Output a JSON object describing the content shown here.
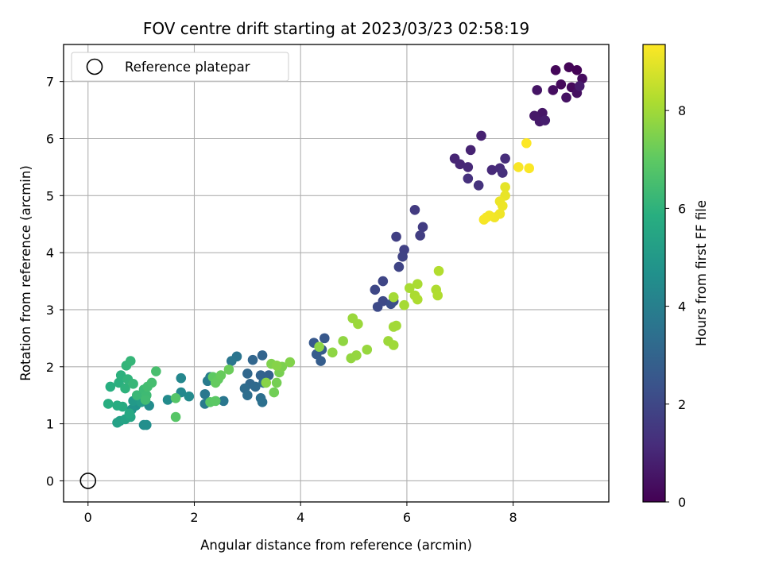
{
  "chart_data": {
    "type": "scatter",
    "title": "FOV centre drift starting at 2023/03/23 02:58:19",
    "xlabel": "Angular distance from reference (arcmin)",
    "ylabel": "Rotation from reference (arcmin)",
    "xlim": [
      -0.46,
      9.8
    ],
    "ylim": [
      -0.37,
      7.65
    ],
    "xticks": [
      0,
      2,
      4,
      6,
      8
    ],
    "yticks": [
      0,
      1,
      2,
      3,
      4,
      5,
      6,
      7
    ],
    "grid": true,
    "colormap": "viridis",
    "colorbar": {
      "label": "Hours from first FF file",
      "range": [
        0,
        9.35
      ],
      "ticks": [
        0,
        2,
        4,
        6,
        8
      ]
    },
    "legend": {
      "placement": "top-left",
      "entries": [
        "Reference platepar"
      ]
    },
    "reference_point": {
      "x": 0,
      "y": 0
    },
    "points": [
      {
        "x": 9.2,
        "y": 7.2,
        "h": 0.05
      },
      {
        "x": 9.05,
        "y": 7.25,
        "h": 0.1
      },
      {
        "x": 8.8,
        "y": 7.2,
        "h": 0.15
      },
      {
        "x": 8.9,
        "y": 6.95,
        "h": 0.2
      },
      {
        "x": 9.1,
        "y": 6.9,
        "h": 0.25
      },
      {
        "x": 9.3,
        "y": 7.05,
        "h": 0.3
      },
      {
        "x": 8.75,
        "y": 6.85,
        "h": 0.35
      },
      {
        "x": 9.2,
        "y": 6.8,
        "h": 0.4
      },
      {
        "x": 9.0,
        "y": 6.72,
        "h": 0.45
      },
      {
        "x": 8.45,
        "y": 6.85,
        "h": 0.5
      },
      {
        "x": 8.55,
        "y": 6.45,
        "h": 0.55
      },
      {
        "x": 8.4,
        "y": 6.4,
        "h": 0.6
      },
      {
        "x": 8.5,
        "y": 6.3,
        "h": 0.65
      },
      {
        "x": 9.25,
        "y": 6.92,
        "h": 0.7
      },
      {
        "x": 8.6,
        "y": 6.32,
        "h": 0.75
      },
      {
        "x": 7.4,
        "y": 6.05,
        "h": 0.85
      },
      {
        "x": 7.2,
        "y": 5.8,
        "h": 0.9
      },
      {
        "x": 6.9,
        "y": 5.65,
        "h": 0.95
      },
      {
        "x": 7.0,
        "y": 5.55,
        "h": 1.0
      },
      {
        "x": 7.15,
        "y": 5.5,
        "h": 1.05
      },
      {
        "x": 7.6,
        "y": 5.45,
        "h": 1.1
      },
      {
        "x": 7.75,
        "y": 5.48,
        "h": 1.15
      },
      {
        "x": 7.85,
        "y": 5.65,
        "h": 1.2
      },
      {
        "x": 7.8,
        "y": 5.4,
        "h": 1.25
      },
      {
        "x": 7.15,
        "y": 5.3,
        "h": 1.3
      },
      {
        "x": 7.35,
        "y": 5.18,
        "h": 1.35
      },
      {
        "x": 6.15,
        "y": 4.75,
        "h": 1.6
      },
      {
        "x": 6.3,
        "y": 4.45,
        "h": 1.65
      },
      {
        "x": 6.25,
        "y": 4.3,
        "h": 1.7
      },
      {
        "x": 5.8,
        "y": 4.28,
        "h": 1.75
      },
      {
        "x": 5.95,
        "y": 4.05,
        "h": 1.8
      },
      {
        "x": 5.92,
        "y": 3.93,
        "h": 1.85
      },
      {
        "x": 5.85,
        "y": 3.75,
        "h": 1.9
      },
      {
        "x": 5.55,
        "y": 3.5,
        "h": 1.95
      },
      {
        "x": 5.4,
        "y": 3.35,
        "h": 2.0
      },
      {
        "x": 5.55,
        "y": 3.15,
        "h": 2.05
      },
      {
        "x": 5.45,
        "y": 3.05,
        "h": 2.1
      },
      {
        "x": 5.75,
        "y": 3.15,
        "h": 2.15
      },
      {
        "x": 5.7,
        "y": 3.1,
        "h": 2.2
      },
      {
        "x": 4.45,
        "y": 2.5,
        "h": 2.55
      },
      {
        "x": 4.25,
        "y": 2.42,
        "h": 2.6
      },
      {
        "x": 4.4,
        "y": 2.3,
        "h": 2.65
      },
      {
        "x": 4.3,
        "y": 2.22,
        "h": 2.7
      },
      {
        "x": 4.38,
        "y": 2.1,
        "h": 2.75
      },
      {
        "x": 3.4,
        "y": 1.85,
        "h": 2.9
      },
      {
        "x": 3.25,
        "y": 1.85,
        "h": 2.95
      },
      {
        "x": 3.28,
        "y": 2.2,
        "h": 3.0
      },
      {
        "x": 3.1,
        "y": 2.12,
        "h": 3.05
      },
      {
        "x": 3.0,
        "y": 1.88,
        "h": 3.1
      },
      {
        "x": 3.05,
        "y": 1.7,
        "h": 3.15
      },
      {
        "x": 3.15,
        "y": 1.65,
        "h": 3.2
      },
      {
        "x": 3.3,
        "y": 1.72,
        "h": 3.25
      },
      {
        "x": 2.95,
        "y": 1.62,
        "h": 3.3
      },
      {
        "x": 3.0,
        "y": 1.5,
        "h": 3.35
      },
      {
        "x": 3.25,
        "y": 1.45,
        "h": 3.4
      },
      {
        "x": 3.28,
        "y": 1.38,
        "h": 3.45
      },
      {
        "x": 2.8,
        "y": 2.18,
        "h": 3.6
      },
      {
        "x": 2.7,
        "y": 2.1,
        "h": 3.65
      },
      {
        "x": 2.55,
        "y": 1.4,
        "h": 3.7
      },
      {
        "x": 2.2,
        "y": 1.52,
        "h": 3.75
      },
      {
        "x": 2.2,
        "y": 1.35,
        "h": 3.8
      },
      {
        "x": 2.25,
        "y": 1.75,
        "h": 3.85
      },
      {
        "x": 2.3,
        "y": 1.82,
        "h": 3.9
      },
      {
        "x": 1.75,
        "y": 1.8,
        "h": 4.3
      },
      {
        "x": 1.75,
        "y": 1.55,
        "h": 4.35
      },
      {
        "x": 1.9,
        "y": 1.48,
        "h": 4.4
      },
      {
        "x": 1.5,
        "y": 1.42,
        "h": 4.45
      },
      {
        "x": 1.15,
        "y": 1.32,
        "h": 4.5
      },
      {
        "x": 1.05,
        "y": 0.98,
        "h": 4.55
      },
      {
        "x": 1.1,
        "y": 0.98,
        "h": 4.6
      },
      {
        "x": 0.9,
        "y": 1.32,
        "h": 4.7
      },
      {
        "x": 0.82,
        "y": 1.25,
        "h": 4.8
      },
      {
        "x": 0.95,
        "y": 1.45,
        "h": 4.9
      },
      {
        "x": 0.85,
        "y": 1.4,
        "h": 5.0
      },
      {
        "x": 1.0,
        "y": 1.38,
        "h": 5.1
      },
      {
        "x": 0.6,
        "y": 1.05,
        "h": 5.2
      },
      {
        "x": 0.55,
        "y": 1.02,
        "h": 5.3
      },
      {
        "x": 0.7,
        "y": 1.08,
        "h": 5.4
      },
      {
        "x": 0.8,
        "y": 1.12,
        "h": 5.5
      },
      {
        "x": 0.78,
        "y": 1.18,
        "h": 5.6
      },
      {
        "x": 0.65,
        "y": 1.3,
        "h": 5.7
      },
      {
        "x": 0.55,
        "y": 1.32,
        "h": 5.75
      },
      {
        "x": 0.38,
        "y": 1.35,
        "h": 5.8
      },
      {
        "x": 0.42,
        "y": 1.65,
        "h": 5.85
      },
      {
        "x": 0.58,
        "y": 1.72,
        "h": 5.9
      },
      {
        "x": 0.62,
        "y": 1.85,
        "h": 5.95
      },
      {
        "x": 0.7,
        "y": 1.62,
        "h": 6.0
      },
      {
        "x": 0.75,
        "y": 1.78,
        "h": 6.05
      },
      {
        "x": 0.72,
        "y": 2.02,
        "h": 6.1
      },
      {
        "x": 0.8,
        "y": 2.1,
        "h": 6.15
      },
      {
        "x": 0.85,
        "y": 1.7,
        "h": 6.2
      },
      {
        "x": 0.92,
        "y": 1.5,
        "h": 6.25
      },
      {
        "x": 1.05,
        "y": 1.6,
        "h": 6.3
      },
      {
        "x": 1.1,
        "y": 1.5,
        "h": 6.35
      },
      {
        "x": 1.08,
        "y": 1.42,
        "h": 6.4
      },
      {
        "x": 1.12,
        "y": 1.65,
        "h": 6.45
      },
      {
        "x": 1.2,
        "y": 1.72,
        "h": 6.5
      },
      {
        "x": 1.28,
        "y": 1.92,
        "h": 6.55
      },
      {
        "x": 1.65,
        "y": 1.45,
        "h": 6.8
      },
      {
        "x": 1.65,
        "y": 1.12,
        "h": 6.85
      },
      {
        "x": 2.3,
        "y": 1.38,
        "h": 6.9
      },
      {
        "x": 2.4,
        "y": 1.4,
        "h": 6.95
      },
      {
        "x": 2.35,
        "y": 1.82,
        "h": 7.0
      },
      {
        "x": 2.45,
        "y": 1.78,
        "h": 7.05
      },
      {
        "x": 2.4,
        "y": 1.72,
        "h": 7.1
      },
      {
        "x": 2.5,
        "y": 1.85,
        "h": 7.15
      },
      {
        "x": 2.65,
        "y": 1.95,
        "h": 7.2
      },
      {
        "x": 3.5,
        "y": 1.55,
        "h": 7.3
      },
      {
        "x": 3.55,
        "y": 1.72,
        "h": 7.35
      },
      {
        "x": 3.6,
        "y": 1.9,
        "h": 7.4
      },
      {
        "x": 3.65,
        "y": 2.0,
        "h": 7.45
      },
      {
        "x": 3.45,
        "y": 2.05,
        "h": 7.5
      },
      {
        "x": 3.8,
        "y": 2.08,
        "h": 7.55
      },
      {
        "x": 3.55,
        "y": 2.02,
        "h": 7.6
      },
      {
        "x": 3.35,
        "y": 1.72,
        "h": 7.65
      },
      {
        "x": 4.35,
        "y": 2.35,
        "h": 7.7
      },
      {
        "x": 4.6,
        "y": 2.25,
        "h": 7.72
      },
      {
        "x": 4.8,
        "y": 2.45,
        "h": 7.75
      },
      {
        "x": 4.95,
        "y": 2.15,
        "h": 7.8
      },
      {
        "x": 5.05,
        "y": 2.2,
        "h": 7.82
      },
      {
        "x": 5.25,
        "y": 2.3,
        "h": 7.85
      },
      {
        "x": 4.98,
        "y": 2.85,
        "h": 7.9
      },
      {
        "x": 5.08,
        "y": 2.75,
        "h": 7.92
      },
      {
        "x": 5.65,
        "y": 2.45,
        "h": 7.95
      },
      {
        "x": 5.75,
        "y": 2.38,
        "h": 7.98
      },
      {
        "x": 5.75,
        "y": 2.7,
        "h": 8.0
      },
      {
        "x": 5.8,
        "y": 2.72,
        "h": 8.02
      },
      {
        "x": 5.75,
        "y": 3.22,
        "h": 8.05
      },
      {
        "x": 5.95,
        "y": 3.08,
        "h": 8.08
      },
      {
        "x": 6.05,
        "y": 3.38,
        "h": 8.1
      },
      {
        "x": 6.2,
        "y": 3.45,
        "h": 8.12
      },
      {
        "x": 6.15,
        "y": 3.25,
        "h": 8.15
      },
      {
        "x": 6.2,
        "y": 3.18,
        "h": 8.18
      },
      {
        "x": 6.55,
        "y": 3.35,
        "h": 8.2
      },
      {
        "x": 6.58,
        "y": 3.25,
        "h": 8.22
      },
      {
        "x": 6.6,
        "y": 3.68,
        "h": 8.25
      },
      {
        "x": 7.85,
        "y": 5.15,
        "h": 9.0
      },
      {
        "x": 7.85,
        "y": 5.0,
        "h": 9.05
      },
      {
        "x": 7.75,
        "y": 4.9,
        "h": 9.1
      },
      {
        "x": 7.8,
        "y": 4.82,
        "h": 9.12
      },
      {
        "x": 7.75,
        "y": 4.68,
        "h": 9.15
      },
      {
        "x": 7.65,
        "y": 4.62,
        "h": 9.18
      },
      {
        "x": 7.55,
        "y": 4.65,
        "h": 9.2
      },
      {
        "x": 7.5,
        "y": 4.62,
        "h": 9.22
      },
      {
        "x": 7.45,
        "y": 4.58,
        "h": 9.25
      },
      {
        "x": 8.1,
        "y": 5.5,
        "h": 9.28
      },
      {
        "x": 8.3,
        "y": 5.48,
        "h": 9.3
      },
      {
        "x": 8.25,
        "y": 5.92,
        "h": 9.33
      }
    ]
  }
}
